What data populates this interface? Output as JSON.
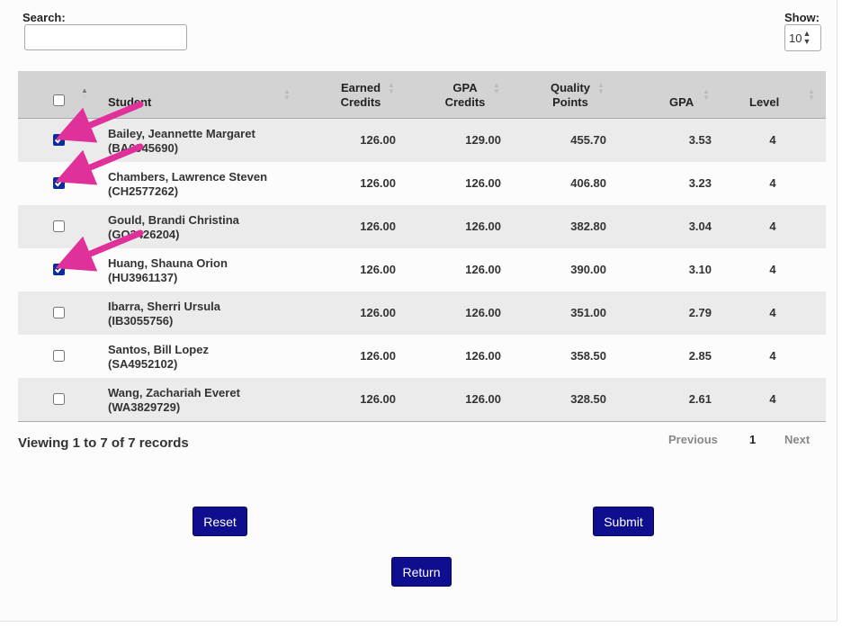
{
  "search": {
    "label": "Search:",
    "value": "",
    "placeholder": ""
  },
  "show": {
    "label": "Show:",
    "value": "10"
  },
  "table": {
    "headers": {
      "student": "Student",
      "earned_1": "Earned",
      "earned_2": "Credits",
      "gpacred_1": "GPA",
      "gpacred_2": "Credits",
      "qp_1": "Quality",
      "qp_2": "Points",
      "gpa": "GPA",
      "level": "Level"
    },
    "rows": [
      {
        "name": "Bailey, Jeannette Margaret",
        "id": "(BA6945690)",
        "earned": "126.00",
        "gpa_credits": "129.00",
        "quality_points": "455.70",
        "gpa": "3.53",
        "level": "4",
        "checked": true
      },
      {
        "name": "Chambers, Lawrence Steven",
        "id": "(CH2577262)",
        "earned": "126.00",
        "gpa_credits": "126.00",
        "quality_points": "406.80",
        "gpa": "3.23",
        "level": "4",
        "checked": true
      },
      {
        "name": "Gould, Brandi Christina",
        "id": "(GO3426204)",
        "earned": "126.00",
        "gpa_credits": "126.00",
        "quality_points": "382.80",
        "gpa": "3.04",
        "level": "4",
        "checked": false
      },
      {
        "name": "Huang, Shauna Orion",
        "id": "(HU3961137)",
        "earned": "126.00",
        "gpa_credits": "126.00",
        "quality_points": "390.00",
        "gpa": "3.10",
        "level": "4",
        "checked": true
      },
      {
        "name": "Ibarra, Sherri Ursula",
        "id": "(IB3055756)",
        "earned": "126.00",
        "gpa_credits": "126.00",
        "quality_points": "351.00",
        "gpa": "2.79",
        "level": "4",
        "checked": false
      },
      {
        "name": "Santos, Bill Lopez",
        "id": "(SA4952102)",
        "earned": "126.00",
        "gpa_credits": "126.00",
        "quality_points": "358.50",
        "gpa": "2.85",
        "level": "4",
        "checked": false
      },
      {
        "name": "Wang, Zachariah Everet",
        "id": "(WA3829729)",
        "earned": "126.00",
        "gpa_credits": "126.00",
        "quality_points": "328.50",
        "gpa": "2.61",
        "level": "4",
        "checked": false
      }
    ]
  },
  "footer": {
    "viewing": "Viewing 1 to 7 of 7 records"
  },
  "pager": {
    "previous": "Previous",
    "page": "1",
    "next": "Next"
  },
  "buttons": {
    "reset": "Reset",
    "submit": "Submit",
    "return": "Return"
  },
  "colors": {
    "button": "#0e0e8f",
    "arrow": "#e0309a",
    "header": "#d3d3d3",
    "stripe": "#ebebeb"
  },
  "icons": {
    "sort": "sort-arrows-icon",
    "annotation": "pink-arrow-icon"
  }
}
